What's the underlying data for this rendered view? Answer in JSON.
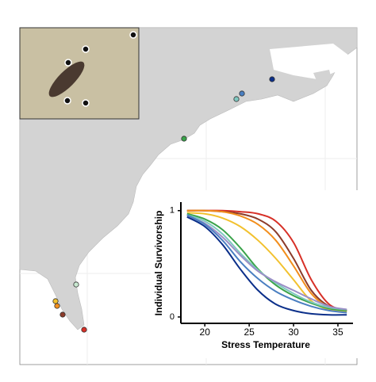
{
  "chart_data": {
    "type": "line",
    "x_label": "Stress Temperature",
    "y_label": "Individual Survivorship",
    "x": [
      18,
      20,
      22,
      24,
      26,
      28,
      30,
      32,
      34,
      36
    ],
    "xlim": [
      17.3,
      36.7
    ],
    "xticks": [
      20,
      25,
      30,
      35
    ],
    "ylim": [
      -0.06,
      1.08
    ],
    "yticks": [
      0,
      1
    ],
    "series": [
      {
        "color": "#d73027",
        "values": [
          1,
          1,
          1,
          0.99,
          0.97,
          0.9,
          0.7,
          0.35,
          0.12,
          0.06
        ]
      },
      {
        "color": "#8c3b2a",
        "values": [
          1,
          1,
          0.99,
          0.97,
          0.92,
          0.8,
          0.55,
          0.25,
          0.1,
          0.06
        ]
      },
      {
        "color": "#f28e1c",
        "values": [
          1,
          1,
          0.99,
          0.95,
          0.87,
          0.72,
          0.48,
          0.22,
          0.09,
          0.05
        ]
      },
      {
        "color": "#f2c12e",
        "values": [
          0.98,
          0.97,
          0.93,
          0.85,
          0.72,
          0.55,
          0.35,
          0.15,
          0.07,
          0.05
        ]
      },
      {
        "color": "#3aa34a",
        "values": [
          0.97,
          0.92,
          0.82,
          0.65,
          0.45,
          0.3,
          0.2,
          0.13,
          0.08,
          0.06
        ]
      },
      {
        "color": "#7fc8c0",
        "values": [
          0.96,
          0.9,
          0.78,
          0.6,
          0.44,
          0.32,
          0.22,
          0.14,
          0.09,
          0.07
        ]
      },
      {
        "color": "#9b8fc7",
        "values": [
          0.95,
          0.88,
          0.75,
          0.58,
          0.43,
          0.33,
          0.25,
          0.17,
          0.1,
          0.07
        ]
      },
      {
        "color": "#4a7fc1",
        "values": [
          0.96,
          0.87,
          0.72,
          0.52,
          0.36,
          0.24,
          0.16,
          0.1,
          0.06,
          0.04
        ]
      },
      {
        "color": "#0b2f8a",
        "values": [
          0.94,
          0.85,
          0.68,
          0.45,
          0.25,
          0.12,
          0.06,
          0.03,
          0.02,
          0.02
        ]
      }
    ]
  }
}
